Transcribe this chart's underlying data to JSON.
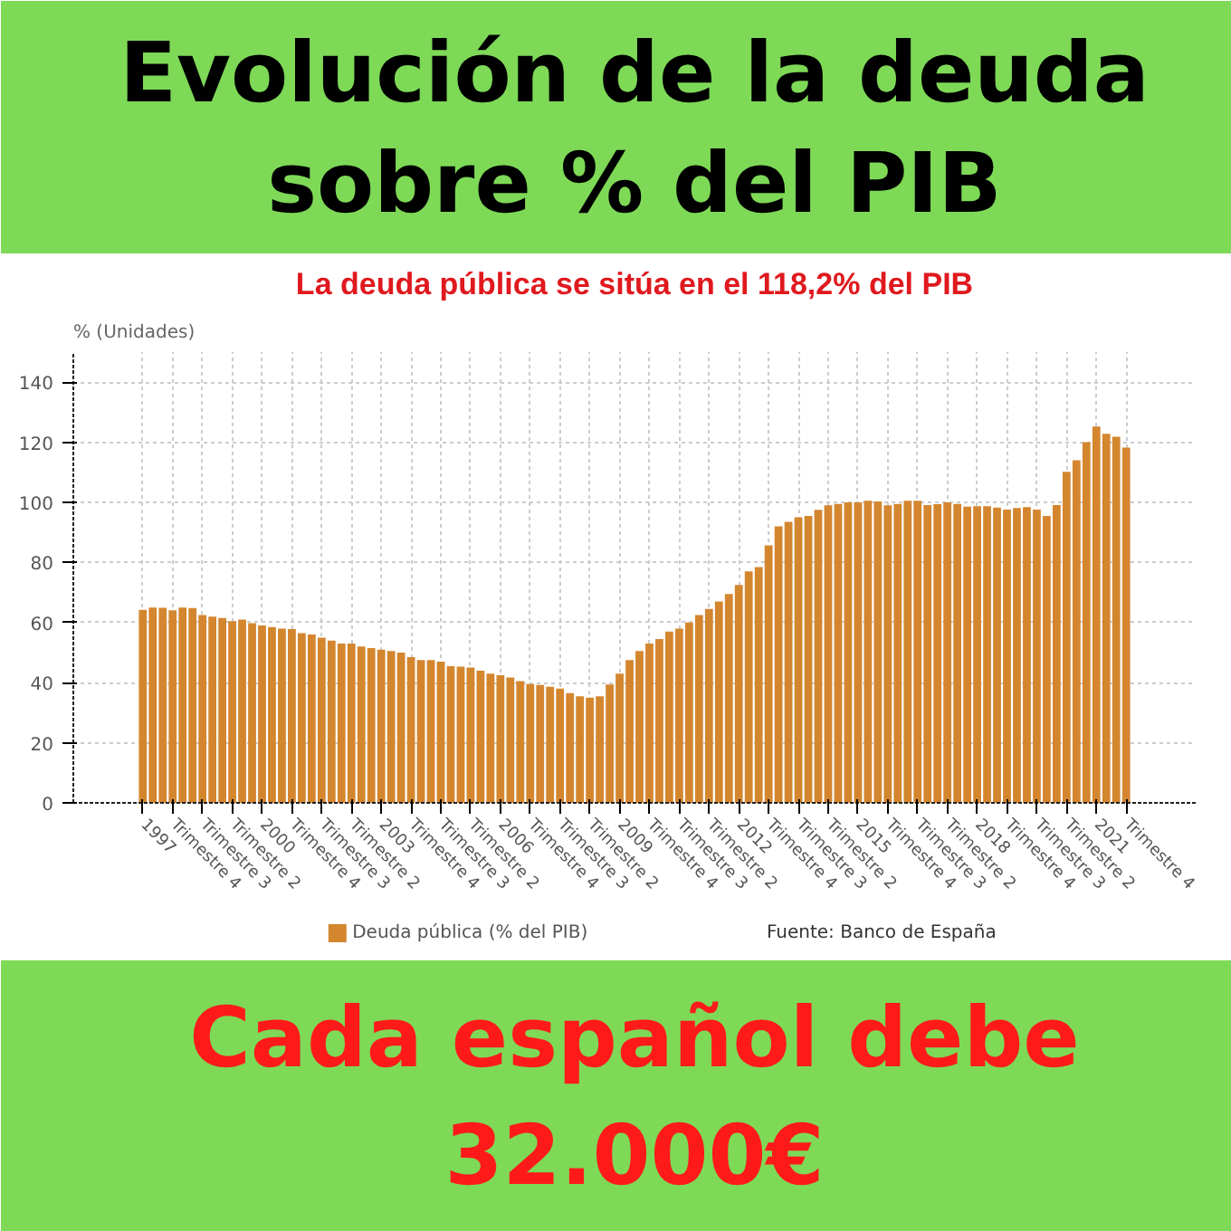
{
  "chart_data": {
    "type": "bar",
    "title": "Evolución de la deuda sobre % del PIB",
    "subtitle": "La deuda pública se sitúa en el 118,2% del PIB",
    "ylabel": "% (Unidades)",
    "categories": [
      "1997",
      null,
      null,
      "Trimestre 4",
      null,
      null,
      "Trimestre 3",
      null,
      null,
      "Trimestre 2",
      null,
      null,
      "2000",
      null,
      null,
      "Trimestre 4",
      null,
      null,
      "Trimestre 3",
      null,
      null,
      "Trimestre 2",
      null,
      null,
      "2003",
      null,
      null,
      "Trimestre 4",
      null,
      null,
      "Trimestre 3",
      null,
      null,
      "Trimestre 2",
      null,
      null,
      "2006",
      null,
      null,
      "Trimestre 4",
      null,
      null,
      "Trimestre 3",
      null,
      null,
      "Trimestre 2",
      null,
      null,
      "2009",
      null,
      null,
      "Trimestre 4",
      null,
      null,
      "Trimestre 3",
      null,
      null,
      "Trimestre 2",
      null,
      null,
      "2012",
      null,
      null,
      "Trimestre 4",
      null,
      null,
      "Trimestre 3",
      null,
      null,
      "Trimestre 2",
      null,
      null,
      "2015",
      null,
      null,
      "Trimestre 4",
      null,
      null,
      "Trimestre 3",
      null,
      null,
      "Trimestre 2",
      null,
      null,
      "2018",
      null,
      null,
      "Trimestre 4",
      null,
      null,
      "Trimestre 3",
      null,
      null,
      "Trimestre 2",
      null,
      null,
      "2021",
      null,
      null,
      "Trimestre 4"
    ],
    "series": [
      {
        "name": "Deuda pública (% del PIB)",
        "color": "#d4862f",
        "values": [
          64.2,
          65.0,
          64.9,
          64.1,
          65.0,
          64.8,
          62.5,
          62.0,
          61.5,
          60.5,
          61.0,
          59.8,
          59.0,
          58.5,
          58.0,
          57.8,
          56.5,
          56.0,
          55.0,
          54.0,
          53.0,
          53.0,
          52.0,
          51.5,
          51.0,
          50.5,
          50.0,
          48.5,
          47.5,
          47.5,
          47.0,
          45.5,
          45.3,
          45.0,
          44.0,
          43.0,
          42.5,
          41.7,
          40.5,
          39.5,
          39.2,
          38.6,
          38.0,
          36.5,
          35.5,
          35.0,
          35.5,
          39.4,
          43.0,
          47.5,
          50.5,
          53.0,
          54.5,
          57.0,
          58.0,
          60.0,
          62.5,
          64.5,
          67.0,
          69.5,
          72.5,
          77.0,
          78.5,
          85.7,
          92.0,
          93.5,
          95.0,
          95.5,
          97.5,
          99.0,
          99.5,
          100.0,
          100.0,
          100.5,
          100.3,
          99.0,
          99.5,
          100.5,
          100.5,
          99.1,
          99.4,
          100.0,
          99.5,
          98.6,
          98.7,
          98.7,
          98.3,
          97.6,
          98.1,
          98.4,
          97.6,
          95.5,
          99.1,
          110.2,
          114.0,
          120.0,
          125.2,
          122.8,
          121.8,
          118.2
        ]
      }
    ],
    "ylim": [
      0,
      150
    ],
    "yticks": [
      0,
      20,
      40,
      60,
      80,
      100,
      120,
      140
    ],
    "grid": true,
    "legend": "bottom",
    "annotations": [
      "Fuente: Banco de España",
      "Cada español debe 32.000€"
    ]
  }
}
